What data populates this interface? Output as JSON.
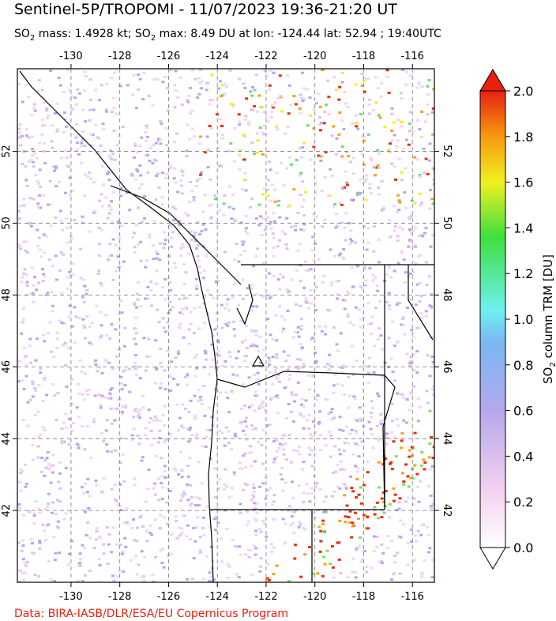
{
  "title": "Sentinel-5P/TROPOMI - 11/07/2023 19:36-21:20 UT",
  "subtitle": {
    "parts": [
      "SO",
      "2",
      " mass: 1.4928 kt; SO",
      "2",
      " max: 8.49 DU at lon: -124.44 lat: 52.94 ; 19:40UTC"
    ]
  },
  "map": {
    "lonlim": [
      -132.2,
      -115.1
    ],
    "latlim": [
      40,
      54.3
    ],
    "lon_ticks": [
      -130,
      -128,
      -126,
      -124,
      -122,
      -120,
      -118,
      -116
    ],
    "lat_ticks": [
      42,
      44,
      46,
      48,
      50,
      52
    ]
  },
  "colorbar": {
    "label_parts": [
      "SO",
      "2",
      " column TRM [DU]"
    ],
    "lim": [
      0,
      2
    ],
    "ticks": [
      {
        "value": 0,
        "label": "0.0"
      },
      0.2,
      0.4,
      0.6,
      0.8,
      {
        "value": 1,
        "label": "1.0"
      },
      1.2,
      1.4,
      1.6,
      1.8,
      {
        "value": 2,
        "label": "2.0"
      }
    ]
  },
  "credit": "Data: BIRA-IASB/DLR/ESA/EU Copernicus Program"
}
